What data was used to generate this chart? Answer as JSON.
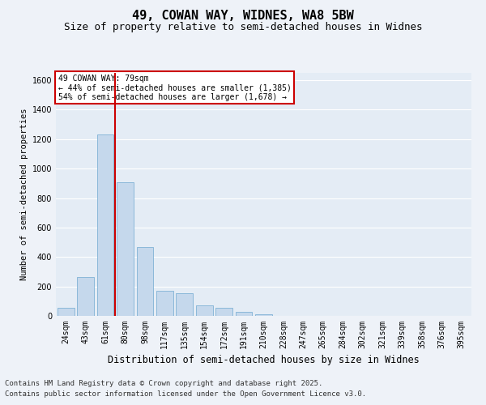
{
  "title_line1": "49, COWAN WAY, WIDNES, WA8 5BW",
  "title_line2": "Size of property relative to semi-detached houses in Widnes",
  "xlabel": "Distribution of semi-detached houses by size in Widnes",
  "ylabel": "Number of semi-detached properties",
  "categories": [
    "24sqm",
    "43sqm",
    "61sqm",
    "80sqm",
    "98sqm",
    "117sqm",
    "135sqm",
    "154sqm",
    "172sqm",
    "191sqm",
    "210sqm",
    "228sqm",
    "247sqm",
    "265sqm",
    "284sqm",
    "302sqm",
    "321sqm",
    "339sqm",
    "358sqm",
    "376sqm",
    "395sqm"
  ],
  "values": [
    55,
    265,
    1230,
    910,
    470,
    170,
    155,
    70,
    55,
    25,
    10,
    0,
    0,
    0,
    0,
    0,
    0,
    0,
    0,
    0,
    0
  ],
  "bar_color": "#c5d8ec",
  "bar_edge_color": "#6fa8d0",
  "vline_color": "#cc0000",
  "annotation_text": "49 COWAN WAY: 79sqm\n← 44% of semi-detached houses are smaller (1,385)\n54% of semi-detached houses are larger (1,678) →",
  "annotation_box_color": "#cc0000",
  "ylim": [
    0,
    1650
  ],
  "yticks": [
    0,
    200,
    400,
    600,
    800,
    1000,
    1200,
    1400,
    1600
  ],
  "background_color": "#eef2f8",
  "plot_bg_color": "#e4ecf5",
  "grid_color": "#ffffff",
  "footer_line1": "Contains HM Land Registry data © Crown copyright and database right 2025.",
  "footer_line2": "Contains public sector information licensed under the Open Government Licence v3.0.",
  "title_fontsize": 11,
  "subtitle_fontsize": 9,
  "xlabel_fontsize": 8.5,
  "ylabel_fontsize": 7.5,
  "tick_fontsize": 7,
  "footer_fontsize": 6.5
}
